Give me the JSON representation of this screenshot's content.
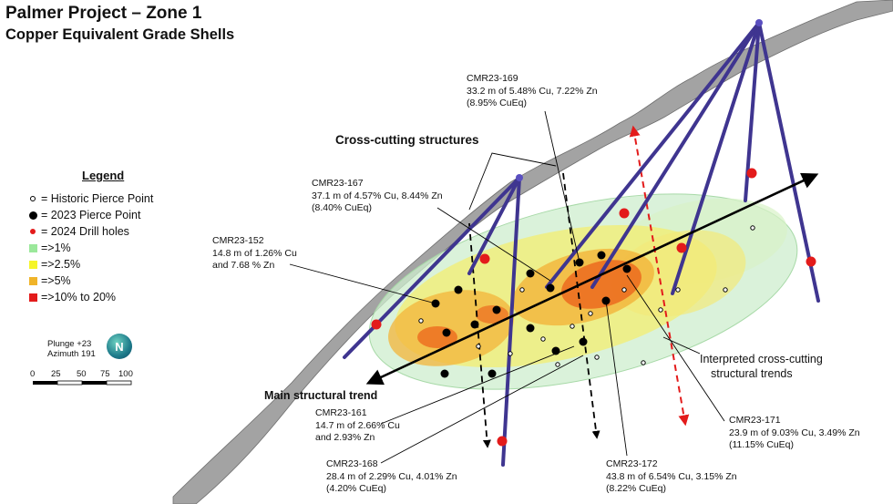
{
  "title": "Palmer Project – Zone 1",
  "subtitle": "Copper Equivalent Grade Shells",
  "legend": {
    "title": "Legend",
    "items": [
      {
        "label": "= Historic Pierce Point",
        "symbol": "historic-pierce-point",
        "color": "#ffffff"
      },
      {
        "label": "= 2023 Pierce Point",
        "symbol": "pierce-point-2023",
        "color": "#000000"
      },
      {
        "label": "= 2024 Drill holes",
        "symbol": "drill-hole-2024",
        "color": "#e31b1b"
      },
      {
        "label": "=>1%",
        "symbol": "grade-shell-1",
        "color": "#9be89b"
      },
      {
        "label": "=>2.5%",
        "symbol": "grade-shell-2_5",
        "color": "#f5f52a"
      },
      {
        "label": "=>5%",
        "symbol": "grade-shell-5",
        "color": "#f0b429"
      },
      {
        "label": "=>10% to 20%",
        "symbol": "grade-shell-10",
        "color": "#e31b1b"
      }
    ]
  },
  "orientation": {
    "plunge": "Plunge +23",
    "azimuth": "Azimuth 191",
    "north_label": "N"
  },
  "scale_bar": {
    "ticks": [
      "0",
      "25",
      "50",
      "75",
      "100"
    ]
  },
  "annotations": {
    "cmr23_169": {
      "hole": "CMR23-169",
      "line1": "33.2 m of 5.48% Cu, 7.22% Zn",
      "line2": "(8.95% CuEq)"
    },
    "cmr23_167": {
      "hole": "CMR23-167",
      "line1": "37.1 m of 4.57% Cu, 8.44% Zn",
      "line2": "(8.40% CuEq)"
    },
    "cmr23_152": {
      "hole": "CMR23-152",
      "line1": "14.8 m of 1.26% Cu",
      "line2": "and 7.68 % Zn"
    },
    "cmr23_161": {
      "hole": "CMR23-161",
      "line1": "14.7 m of 2.66% Cu",
      "line2": "and 2.93% Zn"
    },
    "cmr23_168": {
      "hole": "CMR23-168",
      "line1": "28.4 m of 2.29% Cu, 4.01% Zn",
      "line2": "(4.20% CuEq)"
    },
    "cmr23_172": {
      "hole": "CMR23-172",
      "line1": "43.8 m of 6.54% Cu, 3.15% Zn",
      "line2": "(8.22% CuEq)"
    },
    "cmr23_171": {
      "hole": "CMR23-171",
      "line1": "23.9 m of 9.03% Cu, 3.49% Zn",
      "line2": "(11.15% CuEq)"
    }
  },
  "labels": {
    "cross_cutting": "Cross-cutting structures",
    "interpreted_line1": "Interpreted cross-cutting",
    "interpreted_line2": "structural trends",
    "main_trend": "Main structural trend"
  },
  "colors": {
    "drill_hole": "#3f3590",
    "surface": "#9a9a9a",
    "shell_1": "#d8f4d8",
    "shell_2_5": "#f5ee6a",
    "shell_5": "#f3b43a",
    "shell_10": "#ec6a1e",
    "red_marker": "#e31b1b"
  }
}
